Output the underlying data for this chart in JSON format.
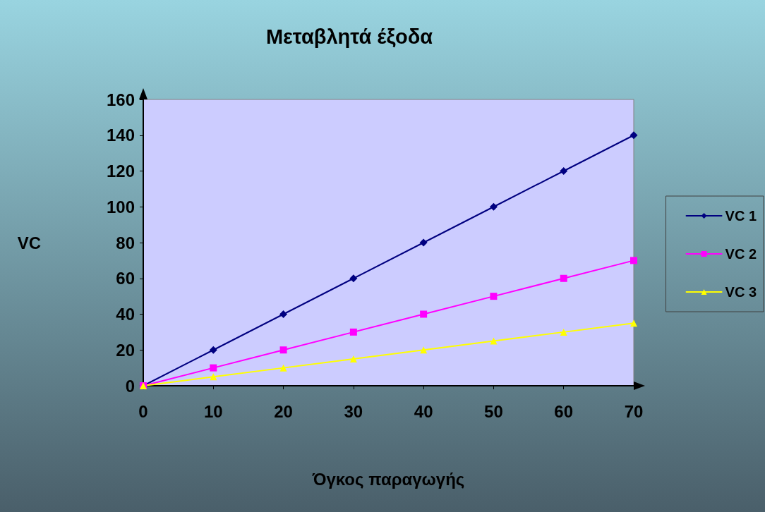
{
  "chart_data": {
    "type": "line",
    "title": "Μεταβλητά έξοδα",
    "xlabel": "Όγκος παραγωγής",
    "ylabel": "VC",
    "x": [
      0,
      10,
      20,
      30,
      40,
      50,
      60,
      70
    ],
    "series": [
      {
        "name": "VC 1",
        "color": "#000080",
        "marker": "diamond",
        "values": [
          0,
          20,
          40,
          60,
          80,
          100,
          120,
          140
        ]
      },
      {
        "name": "VC 2",
        "color": "#ff00ff",
        "marker": "square",
        "values": [
          0,
          10,
          20,
          30,
          40,
          50,
          60,
          70
        ]
      },
      {
        "name": "VC 3",
        "color": "#ffff00",
        "marker": "triangle",
        "values": [
          0,
          5,
          10,
          15,
          20,
          25,
          30,
          35
        ]
      }
    ],
    "xlim": [
      0,
      70
    ],
    "xticks": [
      0,
      10,
      20,
      30,
      40,
      50,
      60,
      70
    ],
    "ylim": [
      0,
      160
    ],
    "yticks": [
      0,
      20,
      40,
      60,
      80,
      100,
      120,
      140,
      160
    ],
    "grid": false,
    "legend": "right",
    "line_style": "solid"
  }
}
